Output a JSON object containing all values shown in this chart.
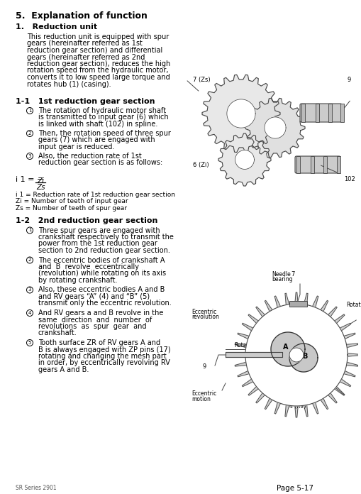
{
  "bg_color": "#ffffff",
  "text_color": "#000000",
  "title": "5.  Explanation of function",
  "footer_left": "SR Series 2901",
  "footer_right": "Page 5-17",
  "section1_heading": "1.   Reduction unit",
  "section1_body_lines": [
    "This reduction unit is equipped with spur",
    "gears (hereinafter referred as 1st",
    "reduction gear section) and differential",
    "gears (hereinafter referred as 2nd",
    "reduction gear section), reduces the high",
    "rotation speed from the hydraulic motor,",
    "converts it to low speed large torque and",
    "rotates hub (1) (casing)."
  ],
  "section11_heading": "1-1   1st reduction gear section",
  "section11_items": [
    [
      "The rotation of hydraulic motor shaft",
      "is transmitted to input gear (6) which",
      "is linked with shaft (102) in spline."
    ],
    [
      "Then, the rotation speed of three spur",
      "gears (7) which are engaged with",
      "input gear is reduced."
    ],
    [
      "Also, the reduction rate of 1st",
      "reduction gear section is as follows:"
    ]
  ],
  "formula_notes": [
    "i 1 = Reduction rate of 1st reduction gear section",
    "Zi = Number of teeth of input gear",
    "Zs = Number of teeth of spur gear"
  ],
  "section12_heading": "1-2   2nd reduction gear section",
  "section12_items": [
    [
      "Three spur gears are engaged with",
      "crankshaft respectively to transmit the",
      "power from the 1st reduction gear",
      "section to 2nd reduction gear section."
    ],
    [
      "The eccentric bodies of crankshaft A",
      "and  B  revolve  eccentrically",
      "(revolution) while rotating on its axis",
      "by rotating crankshaft."
    ],
    [
      "Also, these eccentric bodies A and B",
      "and RV gears “A” (4) and “B” (5)",
      "transmit only the eccentric revolution."
    ],
    [
      "And RV gears a and B revolve in the",
      "same  direction  and  number  of",
      "revolutions  as  spur  gear  and",
      "crankshaft."
    ],
    [
      "Tooth surface ZR of RV gears A and",
      "B is always engaged with ZP pins (17)",
      "rotating and changing the mesh part",
      "in order, by eccentrically revolving RV",
      "gears A and B."
    ]
  ]
}
